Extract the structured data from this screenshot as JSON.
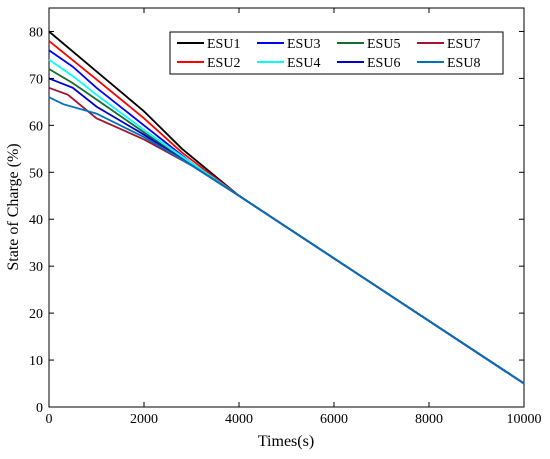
{
  "chart_data": {
    "type": "line",
    "title": "",
    "xlabel": "Times(s)",
    "ylabel": "State of Charge (%)",
    "xlim": [
      0,
      10000
    ],
    "ylim": [
      0,
      85
    ],
    "xticks": [
      0,
      2000,
      4000,
      6000,
      8000,
      10000
    ],
    "yticks": [
      0,
      10,
      20,
      30,
      40,
      50,
      60,
      70,
      80
    ],
    "grid": false,
    "legend_position": "top-right",
    "legend_columns": 4,
    "series": [
      {
        "name": "ESU1",
        "color": "#000000",
        "x": [
          0,
          1000,
          2000,
          2800,
          4000,
          10000
        ],
        "y": [
          80,
          71.5,
          63,
          55,
          45,
          5
        ]
      },
      {
        "name": "ESU2",
        "color": "#ff0000",
        "x": [
          0,
          1000,
          2000,
          2800,
          4000,
          10000
        ],
        "y": [
          78,
          69.8,
          61.5,
          54.2,
          45,
          5
        ]
      },
      {
        "name": "ESU3",
        "color": "#0000ff",
        "x": [
          0,
          500,
          1000,
          2000,
          3000,
          4000,
          10000
        ],
        "y": [
          76,
          72.5,
          68,
          60,
          52,
          45,
          5
        ]
      },
      {
        "name": "ESU4",
        "color": "#00ffff",
        "x": [
          0,
          500,
          1000,
          2000,
          3000,
          4000,
          10000
        ],
        "y": [
          74,
          70.5,
          66.5,
          59,
          52,
          45,
          5
        ]
      },
      {
        "name": "ESU5",
        "color": "#1a6b2e",
        "x": [
          0,
          500,
          1000,
          2000,
          3000,
          4000,
          10000
        ],
        "y": [
          72,
          69,
          65.5,
          58.5,
          51.5,
          45,
          5
        ]
      },
      {
        "name": "ESU6",
        "color": "#0000cc",
        "x": [
          0,
          500,
          1000,
          2000,
          3000,
          4000,
          10000
        ],
        "y": [
          70,
          68,
          64,
          58,
          51.5,
          45,
          5
        ]
      },
      {
        "name": "ESU7",
        "color": "#a2142f",
        "x": [
          0,
          400,
          1000,
          2000,
          3000,
          4000,
          10000
        ],
        "y": [
          68,
          66.5,
          61.5,
          57,
          51.5,
          45,
          5
        ]
      },
      {
        "name": "ESU8",
        "color": "#0072bd",
        "x": [
          0,
          300,
          1000,
          2000,
          3000,
          4000,
          10000
        ],
        "y": [
          66,
          64.5,
          62.5,
          57.5,
          51.5,
          45,
          5
        ]
      }
    ]
  }
}
